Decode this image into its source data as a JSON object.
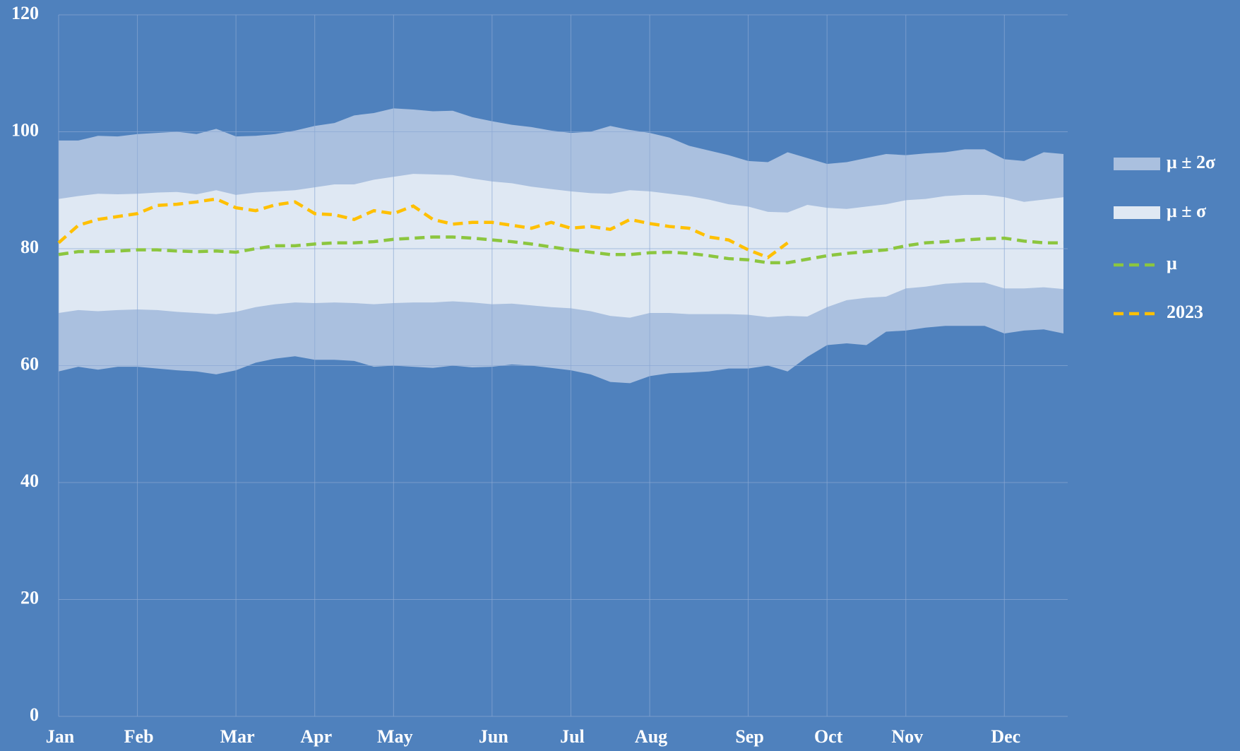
{
  "chart_data": {
    "type": "band-line",
    "categories": [
      "Jan",
      null,
      null,
      null,
      "Feb",
      null,
      null,
      null,
      null,
      "Mar",
      null,
      null,
      null,
      "Apr",
      null,
      null,
      null,
      "May",
      null,
      null,
      null,
      null,
      "Jun",
      null,
      null,
      null,
      "Jul",
      null,
      null,
      null,
      "Aug",
      null,
      null,
      null,
      null,
      "Sep",
      null,
      null,
      null,
      "Oct",
      null,
      null,
      null,
      "Nov",
      null,
      null,
      null,
      null,
      "Dec",
      null,
      null,
      null
    ],
    "ylim": [
      0,
      120
    ],
    "yticks": [
      0,
      20,
      40,
      60,
      80,
      100,
      120
    ],
    "grid": true,
    "legend": "right",
    "background": "#4f81bd",
    "series": [
      {
        "name": "μ ± 2σ",
        "type": "band",
        "color": "#aac0df",
        "high": [
          98.5,
          98.5,
          99.3,
          99.2,
          99.6,
          99.8,
          100,
          99.6,
          100.5,
          99.2,
          99.3,
          99.6,
          100.2,
          101,
          101.5,
          102.8,
          103.2,
          104,
          103.8,
          103.5,
          103.6,
          102.5,
          101.8,
          101.2,
          100.8,
          100.2,
          99.8,
          100,
          101,
          100.3,
          99.8,
          99,
          97.6,
          96.8,
          96,
          95,
          94.8,
          96.5,
          95.5,
          94.5,
          94.8,
          95.5,
          96.2,
          96,
          96.3,
          96.5,
          97,
          97,
          95.3,
          95,
          96.5,
          96.2
        ],
        "low": [
          59,
          59.8,
          59.3,
          59.8,
          59.8,
          59.5,
          59.2,
          59,
          58.5,
          59.2,
          60.5,
          61.2,
          61.6,
          61,
          61,
          60.8,
          59.8,
          60,
          59.8,
          59.6,
          60,
          59.7,
          59.8,
          60.2,
          60,
          59.6,
          59.2,
          58.5,
          57.2,
          57,
          58.2,
          58.7,
          58.8,
          59,
          59.5,
          59.5,
          60,
          59,
          61.5,
          63.5,
          63.8,
          63.5,
          65.8,
          66,
          66.5,
          66.8,
          66.8,
          66.8,
          65.5,
          66,
          66.2,
          65.5
        ]
      },
      {
        "name": "μ ± σ",
        "type": "band",
        "color": "#dfe8f3",
        "high": [
          88.5,
          89,
          89.4,
          89.3,
          89.4,
          89.6,
          89.7,
          89.3,
          90,
          89.2,
          89.6,
          89.8,
          90,
          90.5,
          91,
          91,
          91.8,
          92.3,
          92.8,
          92.7,
          92.6,
          92,
          91.5,
          91.2,
          90.6,
          90.2,
          89.8,
          89.5,
          89.4,
          90,
          89.8,
          89.4,
          89,
          88.4,
          87.6,
          87.2,
          86.3,
          86.2,
          87.5,
          87,
          86.8,
          87.2,
          87.6,
          88.3,
          88.5,
          89,
          89.2,
          89.2,
          88.8,
          88,
          88.4,
          88.8
        ],
        "low": [
          69,
          69.5,
          69.3,
          69.5,
          69.6,
          69.5,
          69.2,
          69,
          68.8,
          69.2,
          70,
          70.5,
          70.8,
          70.7,
          70.8,
          70.7,
          70.5,
          70.7,
          70.8,
          70.8,
          71,
          70.8,
          70.5,
          70.6,
          70.3,
          70,
          69.8,
          69.3,
          68.5,
          68.2,
          69,
          69,
          68.8,
          68.8,
          68.8,
          68.7,
          68.3,
          68.5,
          68.4,
          70,
          71.2,
          71.6,
          71.8,
          73.2,
          73.5,
          74,
          74.2,
          74.2,
          73.2,
          73.2,
          73.4,
          73.1
        ]
      },
      {
        "name": "μ",
        "type": "line",
        "color": "#8cc63f",
        "values": [
          79,
          79.5,
          79.5,
          79.6,
          79.8,
          79.8,
          79.6,
          79.5,
          79.6,
          79.4,
          80,
          80.5,
          80.5,
          80.8,
          81,
          81,
          81.2,
          81.6,
          81.8,
          82,
          82,
          81.8,
          81.5,
          81.2,
          80.8,
          80.3,
          79.8,
          79.4,
          79,
          79,
          79.3,
          79.4,
          79.2,
          78.8,
          78.3,
          78.1,
          77.6,
          77.6,
          78.2,
          78.8,
          79.2,
          79.5,
          79.8,
          80.5,
          81,
          81.2,
          81.5,
          81.7,
          81.8,
          81.3,
          81,
          81
        ]
      },
      {
        "name": "2023",
        "type": "line",
        "color": "#ffc000",
        "values": [
          81,
          84,
          85,
          85.5,
          86,
          87.4,
          87.6,
          88,
          88.5,
          87,
          86.5,
          87.5,
          88,
          86,
          85.8,
          85,
          86.5,
          86,
          87.3,
          85,
          84.2,
          84.5,
          84.5,
          84,
          83.5,
          84.5,
          83.5,
          83.8,
          83.3,
          85,
          84.3,
          83.8,
          83.5,
          82,
          81.5,
          79.8,
          78.5,
          81,
          null,
          null,
          null,
          null,
          null,
          null,
          null,
          null,
          null,
          null,
          null,
          null,
          null,
          null
        ]
      }
    ]
  }
}
